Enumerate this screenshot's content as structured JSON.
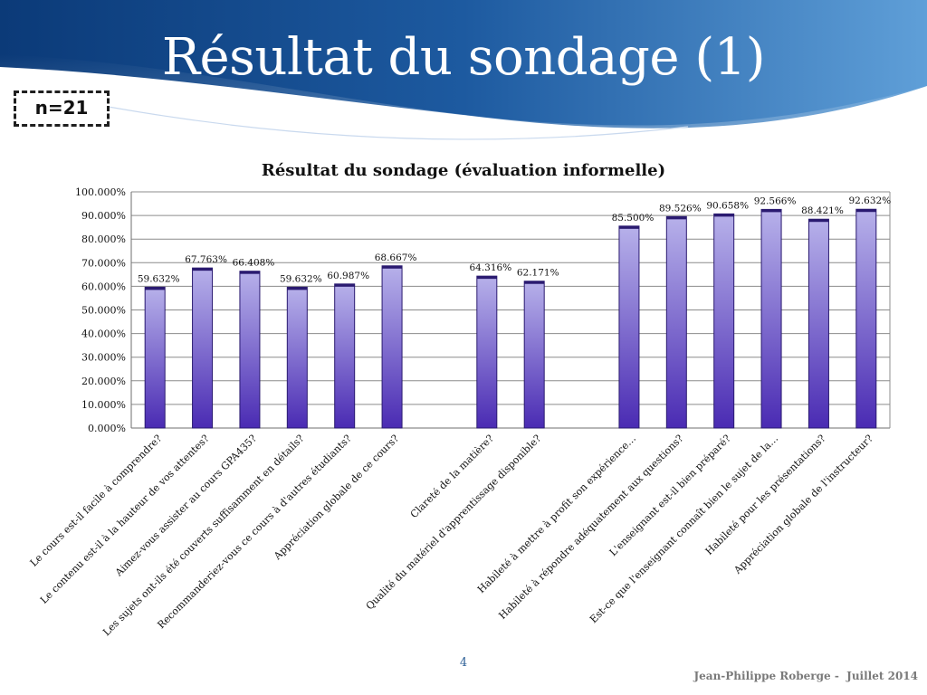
{
  "slide": {
    "title": "Résultat du sondage (1)",
    "n_label": "n=21",
    "page_number": "4",
    "footer": "Jean-Philippe Roberge -  Juillet 2014"
  },
  "colors": {
    "header_dark": "#0b3a78",
    "header_light": "#5f9fd8",
    "bar_top": "#b7b1ea",
    "bar_bottom": "#4a2bb3",
    "bar_outline": "#2a1a70"
  },
  "chart_data": {
    "type": "bar",
    "title": "Résultat du sondage (évaluation informelle)",
    "xlabel": "",
    "ylabel": "",
    "ylim": [
      0,
      100
    ],
    "yticks": [
      "0.000%",
      "10.000%",
      "20.000%",
      "30.000%",
      "40.000%",
      "50.000%",
      "60.000%",
      "70.000%",
      "80.000%",
      "90.000%",
      "100.000%"
    ],
    "grid": true,
    "categories": [
      "Le cours est-il facile à comprendre?",
      "Le contenu est-il à la hauteur de vos attentes?",
      "Aimez-vous assister au cours GPA435?",
      "Les sujets ont-ils été couverts suffisamment en détails?",
      "Recommanderiez-vous ce cours à d'autres étudiants?",
      "Appréciation globale de ce cours?",
      "",
      "Clareté de la matière?",
      "Qualité du matériel d'apprentissage disponible?",
      "",
      "Habileté à mettre à profit son expérience…",
      "Habileté à répondre adéquatement aux questions?",
      "L'enseignant est-il bien préparé?",
      "Est-ce que l'enseignant connaît bien le sujet de la…",
      "Habileté pour les présentations?",
      "Appréciation globale de l'instructeur?"
    ],
    "values": [
      59.632,
      67.763,
      66.408,
      59.632,
      60.987,
      68.667,
      null,
      64.316,
      62.171,
      null,
      85.5,
      89.526,
      90.658,
      92.566,
      88.421,
      92.632
    ],
    "value_labels": [
      "59.632%",
      "67.763%",
      "66.408%",
      "59.632%",
      "60.987%",
      "68.667%",
      "",
      "64.316%",
      "62.171%",
      "",
      "85.500%",
      "89.526%",
      "90.658%",
      "92.566%",
      "88.421%",
      "92.632%"
    ]
  }
}
